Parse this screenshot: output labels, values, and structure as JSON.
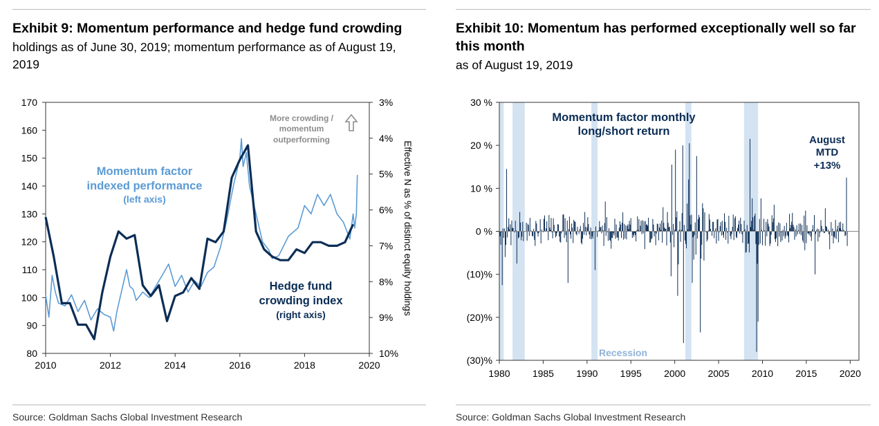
{
  "exhibit9": {
    "title": "Exhibit 9: Momentum performance and hedge fund crowding",
    "subtitle": "holdings as of June 30, 2019; momentum performance as of August 19, 2019",
    "source": "Source: Goldman Sachs Global Investment Research"
  },
  "exhibit10": {
    "title": "Exhibit 10: Momentum has performed exceptionally well so far this month",
    "subtitle": "as of August 19, 2019",
    "source": "Source: Goldman Sachs Global Investment Research"
  },
  "chart_data": [
    {
      "type": "line",
      "x_ticks": [
        "2010",
        "2012",
        "2014",
        "2016",
        "2018",
        "2020"
      ],
      "xlim": [
        2010,
        2020
      ],
      "ylim_left": [
        80,
        170
      ],
      "y_ticks_left": [
        "170",
        "160",
        "150",
        "140",
        "130",
        "120",
        "110",
        "100",
        "90",
        "80"
      ],
      "ylim_right": [
        3,
        10
      ],
      "right_axis_reversed": true,
      "y_ticks_right": [
        "3%",
        "4%",
        "5%",
        "6%",
        "7%",
        "8%",
        "9%",
        "10%"
      ],
      "ylabel_right": "Effective N as % of distinct equity holdings",
      "grid": false,
      "series": [
        {
          "name": "Momentum factor indexed performance (left axis)",
          "axis": "left",
          "color": "#5b9bd5",
          "x": [
            2010.0,
            2010.1,
            2010.2,
            2010.3,
            2010.4,
            2010.6,
            2010.8,
            2011.0,
            2011.2,
            2011.4,
            2011.6,
            2011.8,
            2012.0,
            2012.1,
            2012.2,
            2012.4,
            2012.5,
            2012.6,
            2012.7,
            2012.8,
            2013.0,
            2013.2,
            2013.4,
            2013.6,
            2013.8,
            2014.0,
            2014.2,
            2014.4,
            2014.6,
            2014.8,
            2015.0,
            2015.2,
            2015.4,
            2015.6,
            2015.8,
            2016.0,
            2016.05,
            2016.1,
            2016.2,
            2016.3,
            2016.5,
            2016.7,
            2016.9,
            2017.0,
            2017.2,
            2017.5,
            2017.8,
            2018.0,
            2018.2,
            2018.4,
            2018.6,
            2018.8,
            2019.0,
            2019.2,
            2019.4,
            2019.5,
            2019.55,
            2019.6,
            2019.63
          ],
          "values": [
            101,
            93,
            108,
            102,
            98,
            97,
            101,
            95,
            99,
            92,
            96,
            94,
            93,
            88,
            95,
            105,
            110,
            104,
            103,
            99,
            102,
            100,
            104,
            108,
            112,
            104,
            108,
            102,
            106,
            104,
            109,
            111,
            118,
            128,
            140,
            150,
            157,
            147,
            152,
            140,
            130,
            120,
            117,
            114,
            115,
            122,
            125,
            133,
            130,
            137,
            133,
            137,
            130,
            127,
            121,
            130,
            125,
            130,
            144
          ]
        },
        {
          "name": "Hedge fund crowding index (right axis)",
          "axis": "right",
          "color": "#0b2d55",
          "x": [
            2010.0,
            2010.25,
            2010.5,
            2010.75,
            2011.0,
            2011.25,
            2011.5,
            2011.75,
            2012.0,
            2012.25,
            2012.5,
            2012.75,
            2013.0,
            2013.25,
            2013.5,
            2013.75,
            2014.0,
            2014.25,
            2014.5,
            2014.75,
            2015.0,
            2015.25,
            2015.5,
            2015.75,
            2016.0,
            2016.25,
            2016.5,
            2016.75,
            2017.0,
            2017.25,
            2017.5,
            2017.75,
            2018.0,
            2018.25,
            2018.5,
            2018.75,
            2019.0,
            2019.25,
            2019.5
          ],
          "values": [
            6.2,
            7.3,
            8.6,
            8.6,
            9.2,
            9.2,
            9.6,
            8.3,
            7.3,
            6.6,
            6.8,
            6.7,
            8.1,
            8.4,
            8.1,
            9.1,
            8.4,
            8.3,
            7.9,
            8.2,
            6.8,
            6.9,
            6.6,
            5.1,
            4.6,
            4.2,
            6.6,
            7.1,
            7.3,
            7.4,
            7.4,
            7.1,
            7.2,
            6.9,
            6.9,
            7.0,
            7.0,
            6.9,
            6.4
          ]
        }
      ],
      "annotations": [
        {
          "text": "Momentum factor",
          "color": "#5b9bd5"
        },
        {
          "text": "indexed performance",
          "color": "#5b9bd5"
        },
        {
          "text": "(left axis)",
          "color": "#5b9bd5"
        },
        {
          "text": "Hedge fund",
          "color": "#0b2d55"
        },
        {
          "text": "crowding index",
          "color": "#0b2d55"
        },
        {
          "text": "(right axis)",
          "color": "#0b2d55"
        },
        {
          "text": "More crowding /",
          "color": "#8c8c8c"
        },
        {
          "text": "momentum",
          "color": "#8c8c8c"
        },
        {
          "text": "outperforming",
          "color": "#8c8c8c"
        }
      ]
    },
    {
      "type": "bar",
      "xlim": [
        1980,
        2021
      ],
      "x_ticks": [
        "1980",
        "1985",
        "1990",
        "1995",
        "2000",
        "2005",
        "2010",
        "2015",
        "2020"
      ],
      "ylim": [
        -30,
        30
      ],
      "y_ticks": [
        "30 %",
        "20 %",
        "10 %",
        "0 %",
        "(10)%",
        "(20)%",
        "(30)%"
      ],
      "grid": false,
      "bar_color": "#0b2d55",
      "recession_color": "#c6d9ee",
      "recessions": [
        [
          1980.0,
          1980.5
        ],
        [
          1981.5,
          1982.9
        ],
        [
          1990.5,
          1991.2
        ],
        [
          2001.2,
          2001.9
        ],
        [
          2007.9,
          2009.5
        ]
      ],
      "key_returns": [
        {
          "x": 1980.3,
          "value": -12.5
        },
        {
          "x": 1980.8,
          "value": 14.5
        },
        {
          "x": 1982.0,
          "value": -7.5
        },
        {
          "x": 1987.8,
          "value": -12.0
        },
        {
          "x": 1990.9,
          "value": 10.0
        },
        {
          "x": 1990.95,
          "value": -9.0
        },
        {
          "x": 1999.7,
          "value": 15.5
        },
        {
          "x": 2000.1,
          "value": 19.0
        },
        {
          "x": 2000.3,
          "value": -15.0
        },
        {
          "x": 2000.9,
          "value": 20.0
        },
        {
          "x": 2001.0,
          "value": -26.0
        },
        {
          "x": 2001.7,
          "value": 20.5
        },
        {
          "x": 2002.0,
          "value": -12.0
        },
        {
          "x": 2002.5,
          "value": 17.5
        },
        {
          "x": 2002.9,
          "value": -23.5
        },
        {
          "x": 2008.6,
          "value": 21.5
        },
        {
          "x": 2009.3,
          "value": -28.0
        },
        {
          "x": 2009.5,
          "value": -21.0
        },
        {
          "x": 2016.0,
          "value": -10.0
        },
        {
          "x": 2019.6,
          "value": 12.5
        }
      ],
      "annotations": [
        {
          "text": "Momentum factor monthly",
          "color": "#0b2d55"
        },
        {
          "text": "long/short return",
          "color": "#0b2d55"
        },
        {
          "text": "August",
          "color": "#0b2d55"
        },
        {
          "text": "MTD",
          "color": "#0b2d55"
        },
        {
          "text": "+13%",
          "color": "#0b2d55"
        },
        {
          "text": "Recession",
          "color": "#8fb3d9"
        }
      ]
    }
  ]
}
